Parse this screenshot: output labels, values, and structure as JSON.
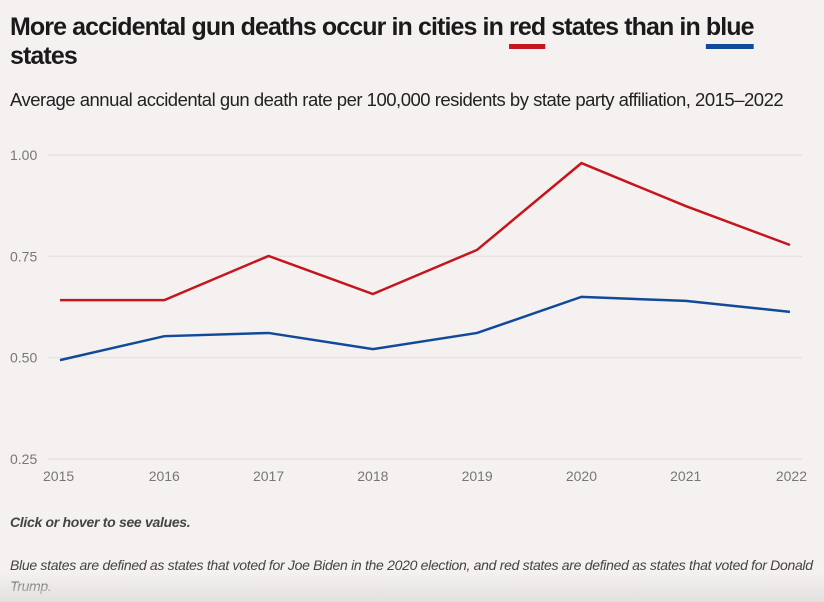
{
  "title": {
    "part1": "More accidental gun deaths occur in cities in ",
    "red": "red",
    "part2": " states than in ",
    "blue": "blue",
    "part3": " states"
  },
  "subtitle": "Average annual accidental gun death rate per 100,000 residents by state party affiliation, 2015–2022",
  "note": "Click or hover to see values.",
  "footnote": "Blue states are defined as states that voted for Joe Biden in the 2020 election, and red states are defined as states that voted for Donald Trump.",
  "colors": {
    "red": "#c4161c",
    "blue": "#114a98",
    "grid": "#e6e3e2"
  },
  "chart_data": {
    "type": "line",
    "title": "More accidental gun deaths occur in cities in red states than in blue states",
    "xlabel": "",
    "ylabel": "",
    "x": [
      "2015",
      "2016",
      "2017",
      "2018",
      "2019",
      "2020",
      "2021",
      "2022"
    ],
    "yticks": [
      "1.00",
      "0.75",
      "0.50",
      "0.25"
    ],
    "ylim": [
      0.25,
      1.0
    ],
    "grid": true,
    "series": [
      {
        "name": "Red states",
        "color": "#c4161c",
        "values": [
          0.642,
          0.642,
          0.751,
          0.657,
          0.766,
          0.98,
          0.874,
          0.778
        ]
      },
      {
        "name": "Blue states",
        "color": "#114a98",
        "values": [
          0.494,
          0.553,
          0.561,
          0.521,
          0.561,
          0.65,
          0.64,
          0.613
        ]
      }
    ]
  }
}
